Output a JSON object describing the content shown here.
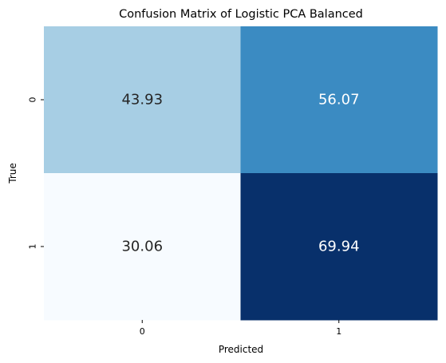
{
  "chart_data": {
    "type": "heatmap",
    "title": "Confusion Matrix of Logistic PCA Balanced",
    "xlabel": "Predicted",
    "ylabel": "True",
    "x_categories": [
      "0",
      "1"
    ],
    "y_categories": [
      "0",
      "1"
    ],
    "values": [
      [
        43.93,
        56.07
      ],
      [
        30.06,
        69.94
      ]
    ],
    "value_labels": [
      [
        "43.93",
        "56.07"
      ],
      [
        "30.06",
        "69.94"
      ]
    ],
    "colormap": "Blues",
    "colorbar": false,
    "grid": false,
    "colors": {
      "low": "#f7fbff",
      "high": "#08306b",
      "text_dark": "#262626",
      "text_light": "#ffffff"
    }
  }
}
